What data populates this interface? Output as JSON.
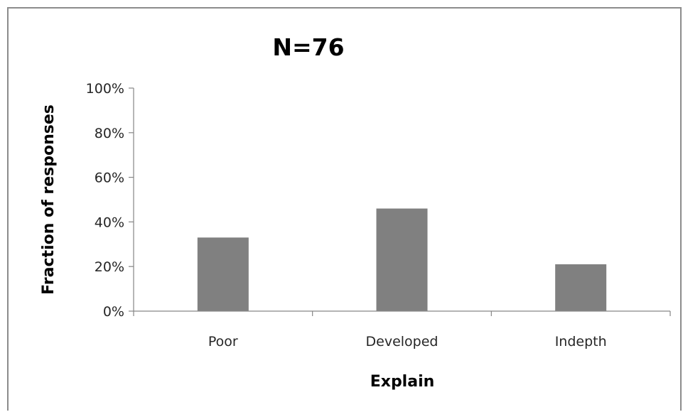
{
  "chart_data": {
    "type": "bar",
    "title": "N=76",
    "xlabel": "Explain",
    "ylabel": "Fraction of responses",
    "categories": [
      "Poor",
      "Developed",
      "Indepth"
    ],
    "values": [
      33,
      46,
      21
    ],
    "value_unit": "%",
    "ylim": [
      0,
      100
    ],
    "yticks": [
      0,
      20,
      40,
      60,
      80,
      100
    ],
    "ytick_labels": [
      "0%",
      "20%",
      "40%",
      "60%",
      "80%",
      "100%"
    ],
    "grid": false,
    "legend": "none",
    "bar_color": "#808080",
    "axis_color": "#868686"
  }
}
